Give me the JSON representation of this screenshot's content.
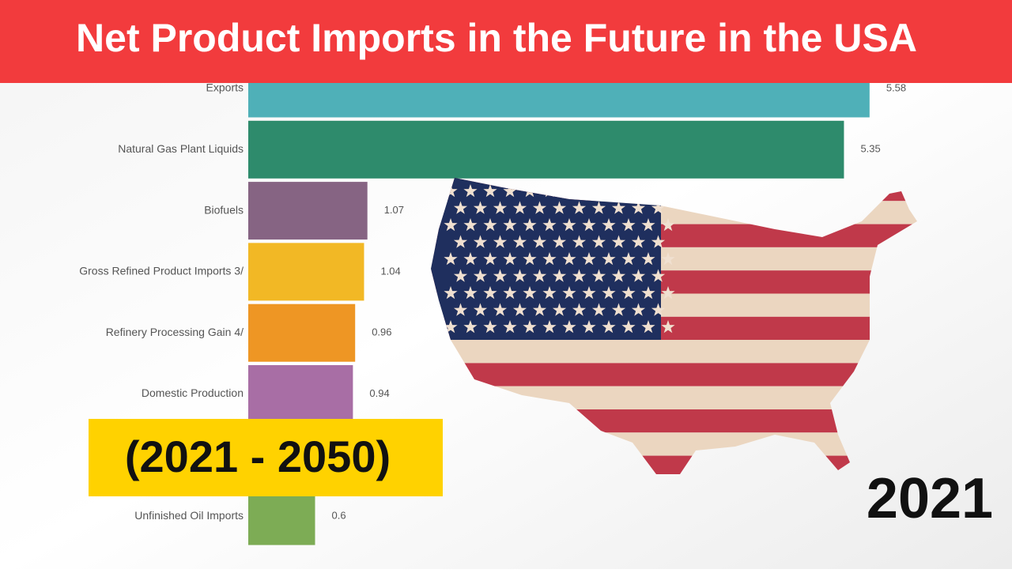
{
  "chart_data": {
    "type": "hbar",
    "title": "Net Product Imports in the Future in the USA",
    "subtitle": "(2021 - 2050)",
    "period": "2021",
    "categories": [
      "Exports",
      "Natural Gas Plant Liquids",
      "Biofuels",
      "Gross Refined Product Imports 3/",
      "Refinery Processing Gain 4/",
      "Domestic Production",
      null,
      "Unfinished Oil Imports"
    ],
    "values": [
      5.58,
      5.35,
      1.07,
      1.04,
      0.96,
      0.94,
      null,
      0.6
    ],
    "colors": [
      "#4fb0b8",
      "#2e8b6c",
      "#866483",
      "#f2b825",
      "#ee9624",
      "#a86ea5",
      "#999999",
      "#7dac55"
    ],
    "xlim": [
      0,
      6
    ]
  }
}
